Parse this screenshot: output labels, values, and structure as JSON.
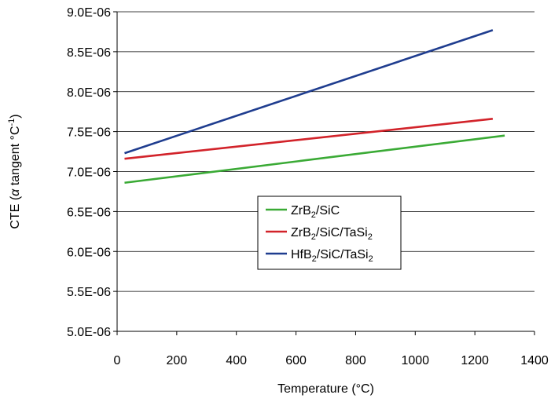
{
  "chart_data": {
    "type": "line",
    "title": "",
    "xlabel": "Temperature (°C)",
    "ylabel": {
      "prefix": "CTE (",
      "greek": "α",
      "middle": " tangent °C",
      "sup": "-1",
      "suffix": ")"
    },
    "xlim": [
      0,
      1400
    ],
    "ylim": [
      5e-06,
      9e-06
    ],
    "x_ticks": [
      0,
      200,
      400,
      600,
      800,
      1000,
      1200,
      1400
    ],
    "x_tick_labels": [
      "0",
      "200",
      "400",
      "600",
      "800",
      "1000",
      "1200",
      "1400"
    ],
    "y_ticks": [
      5e-06,
      5.5e-06,
      6e-06,
      6.5e-06,
      7e-06,
      7.5e-06,
      8e-06,
      8.5e-06,
      9e-06
    ],
    "y_tick_labels": [
      "5.0E-06",
      "5.5E-06",
      "6.0E-06",
      "6.5E-06",
      "7.0E-06",
      "7.5E-06",
      "8.0E-06",
      "8.5E-06",
      "9.0E-06"
    ],
    "grid": "horizontal",
    "legend_position": "center",
    "series": [
      {
        "name": "ZrB2/SiC",
        "legend_parts": [
          [
            "ZrB",
            false
          ],
          [
            "2",
            true
          ],
          [
            "/SiC",
            false
          ]
        ],
        "color": "#3aaa35",
        "x": [
          25,
          1300
        ],
        "y": [
          6.86e-06,
          7.45e-06
        ]
      },
      {
        "name": "ZrB2/SiC/TaSi2",
        "legend_parts": [
          [
            "ZrB",
            false
          ],
          [
            "2",
            true
          ],
          [
            "/SiC/TaSi",
            false
          ],
          [
            "2",
            true
          ]
        ],
        "color": "#d2232a",
        "x": [
          25,
          1260
        ],
        "y": [
          7.16e-06,
          7.66e-06
        ]
      },
      {
        "name": "HfB2/SiC/TaSi2",
        "legend_parts": [
          [
            "HfB",
            false
          ],
          [
            "2",
            true
          ],
          [
            "/SiC/TaSi",
            false
          ],
          [
            "2",
            true
          ]
        ],
        "color": "#1f3d8f",
        "x": [
          25,
          1260
        ],
        "y": [
          7.23e-06,
          8.77e-06
        ]
      }
    ]
  }
}
